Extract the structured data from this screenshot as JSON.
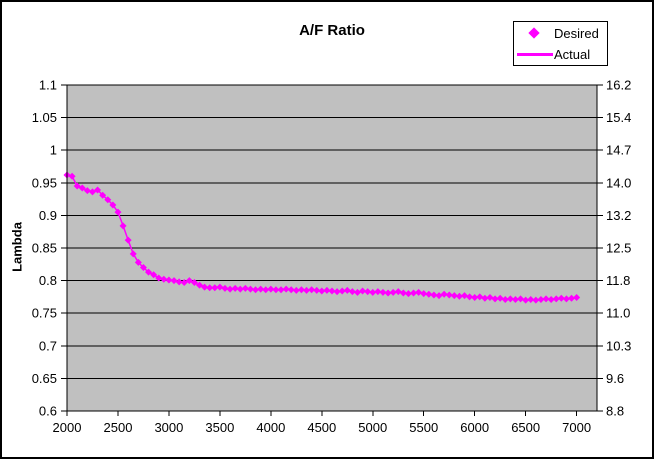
{
  "chart_data": {
    "type": "scatter",
    "title": "A/F Ratio",
    "ylabel_left": "Lambda",
    "ylabel_right": "",
    "xlabel": "",
    "legend": {
      "position": "top-right",
      "items": [
        {
          "label": "Desired",
          "marker": "diamond"
        },
        {
          "label": "Actual",
          "marker": "line"
        }
      ]
    },
    "colors": {
      "series": "#FF00FF",
      "plot_background": "#C0C0C0",
      "gridlines": "#000000",
      "axis": "#000000",
      "text": "#000000",
      "chart_background": "#FFFFFF"
    },
    "grid": "horizontal-only",
    "xlim": [
      2000,
      7200
    ],
    "ylim_left": [
      0.6,
      1.1
    ],
    "ylim_right": [
      8.8,
      16.2
    ],
    "x_ticks": [
      2000,
      2500,
      3000,
      3500,
      4000,
      4500,
      5000,
      5500,
      6000,
      6500,
      7000
    ],
    "x_tick_labels": [
      "2000",
      "2500",
      "3000",
      "3500",
      "4000",
      "4500",
      "5000",
      "5500",
      "6000",
      "6500",
      "7000"
    ],
    "left_ticks": [
      1.1,
      1.05,
      1.0,
      0.95,
      0.9,
      0.85,
      0.8,
      0.75,
      0.7,
      0.65,
      0.6
    ],
    "left_tick_labels": [
      "1.1",
      "1.05",
      "1",
      "0.95",
      "0.9",
      "0.85",
      "0.8",
      "0.75",
      "0.7",
      "0.65",
      "0.6"
    ],
    "right_tick_labels": [
      "16.2",
      "15.4",
      "14.7",
      "14.0",
      "13.2",
      "12.5",
      "11.8",
      "11.0",
      "10.3",
      "9.6",
      "8.8"
    ],
    "series": [
      {
        "name": "Desired",
        "type": "scatter",
        "marker": "diamond",
        "color": "#FF00FF",
        "x": [
          2000,
          2050,
          2100,
          2150,
          2200,
          2250,
          2300,
          2350,
          2400,
          2450,
          2500,
          2550,
          2600,
          2650,
          2700,
          2750,
          2800,
          2850,
          2900,
          2950,
          3000,
          3050,
          3100,
          3150,
          3200,
          3250,
          3300,
          3350,
          3400,
          3450,
          3500,
          3550,
          3600,
          3650,
          3700,
          3750,
          3800,
          3850,
          3900,
          3950,
          4000,
          4050,
          4100,
          4150,
          4200,
          4250,
          4300,
          4350,
          4400,
          4450,
          4500,
          4550,
          4600,
          4650,
          4700,
          4750,
          4800,
          4850,
          4900,
          4950,
          5000,
          5050,
          5100,
          5150,
          5200,
          5250,
          5300,
          5350,
          5400,
          5450,
          5500,
          5550,
          5600,
          5650,
          5700,
          5750,
          5800,
          5850,
          5900,
          5950,
          6000,
          6050,
          6100,
          6150,
          6200,
          6250,
          6300,
          6350,
          6400,
          6450,
          6500,
          6550,
          6600,
          6650,
          6700,
          6750,
          6800,
          6850,
          6900,
          6950,
          7000
        ],
        "y": [
          0.962,
          0.96,
          0.945,
          0.942,
          0.938,
          0.936,
          0.939,
          0.931,
          0.924,
          0.916,
          0.905,
          0.884,
          0.862,
          0.841,
          0.828,
          0.82,
          0.813,
          0.809,
          0.804,
          0.802,
          0.801,
          0.8,
          0.798,
          0.797,
          0.8,
          0.797,
          0.793,
          0.79,
          0.789,
          0.789,
          0.79,
          0.788,
          0.787,
          0.788,
          0.787,
          0.788,
          0.787,
          0.786,
          0.787,
          0.786,
          0.787,
          0.786,
          0.786,
          0.787,
          0.786,
          0.785,
          0.786,
          0.785,
          0.786,
          0.785,
          0.784,
          0.785,
          0.784,
          0.783,
          0.784,
          0.785,
          0.783,
          0.782,
          0.784,
          0.783,
          0.782,
          0.783,
          0.782,
          0.781,
          0.782,
          0.783,
          0.781,
          0.78,
          0.781,
          0.782,
          0.78,
          0.779,
          0.778,
          0.777,
          0.779,
          0.778,
          0.777,
          0.776,
          0.777,
          0.775,
          0.774,
          0.775,
          0.773,
          0.774,
          0.772,
          0.773,
          0.771,
          0.772,
          0.771,
          0.772,
          0.77,
          0.771,
          0.77,
          0.771,
          0.772,
          0.771,
          0.772,
          0.773,
          0.772,
          0.773,
          0.774
        ]
      },
      {
        "name": "Actual",
        "type": "line",
        "color": "#FF00FF",
        "coincides_with_series": "Desired"
      }
    ]
  }
}
